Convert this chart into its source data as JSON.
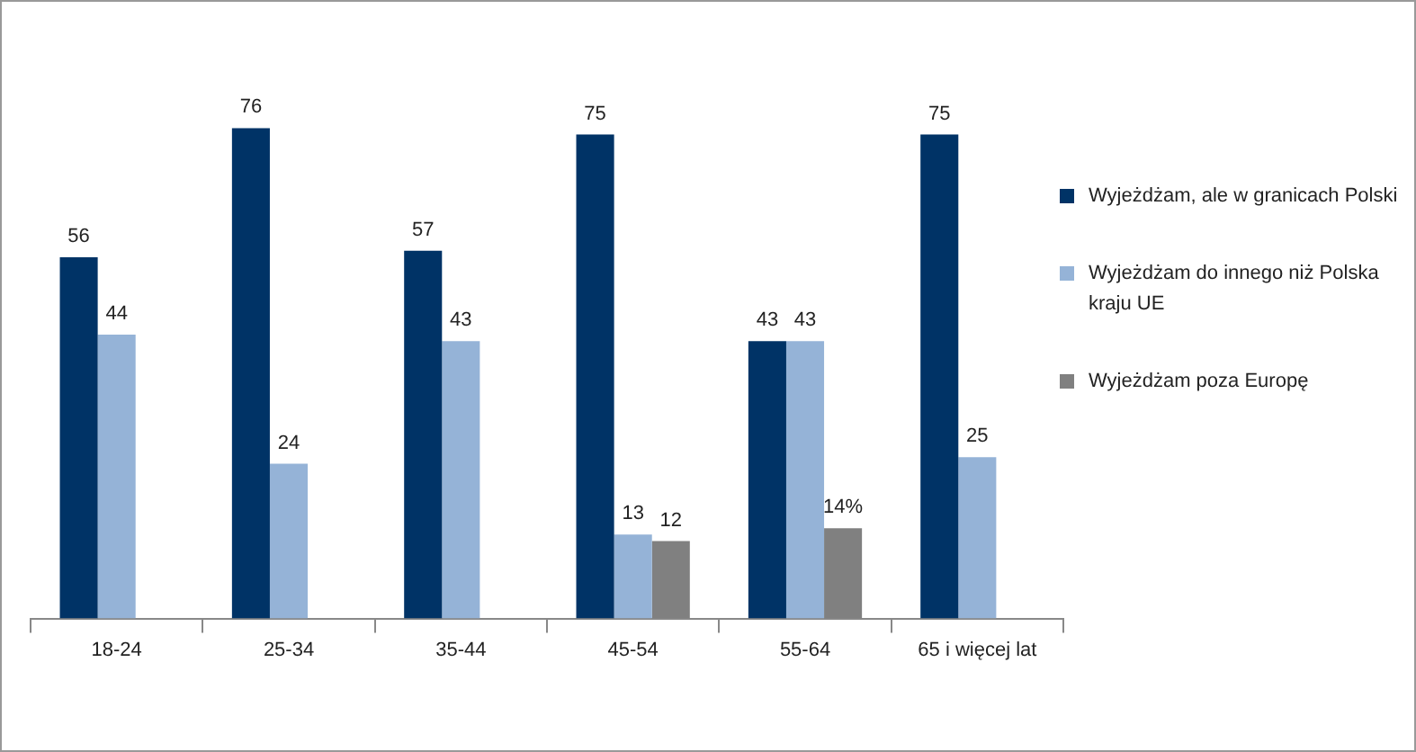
{
  "chart_data": {
    "type": "bar",
    "categories": [
      "18-24",
      "25-34",
      "35-44",
      "45-54",
      "55-64",
      "65 i więcej lat"
    ],
    "series": [
      {
        "name": "Wyjeżdżam, ale w granicach Polski",
        "color": "#003366",
        "values": [
          56,
          76,
          57,
          75,
          43,
          75
        ],
        "value_labels": [
          "56",
          "76",
          "57",
          "75",
          "43",
          "75"
        ]
      },
      {
        "name": "Wyjeżdżam do innego niż Polska kraju UE",
        "color": "#95b3d7",
        "values": [
          44,
          24,
          43,
          13,
          43,
          25
        ],
        "value_labels": [
          "44",
          "24",
          "43",
          "13",
          "43",
          "25"
        ]
      },
      {
        "name": "Wyjeżdżam poza Europę",
        "color": "#808080",
        "values": [
          null,
          null,
          null,
          12,
          14,
          null
        ],
        "value_labels": [
          null,
          null,
          null,
          "12",
          "14%",
          null
        ]
      }
    ],
    "legend": "right",
    "grid": false,
    "tick_labels": "x"
  }
}
